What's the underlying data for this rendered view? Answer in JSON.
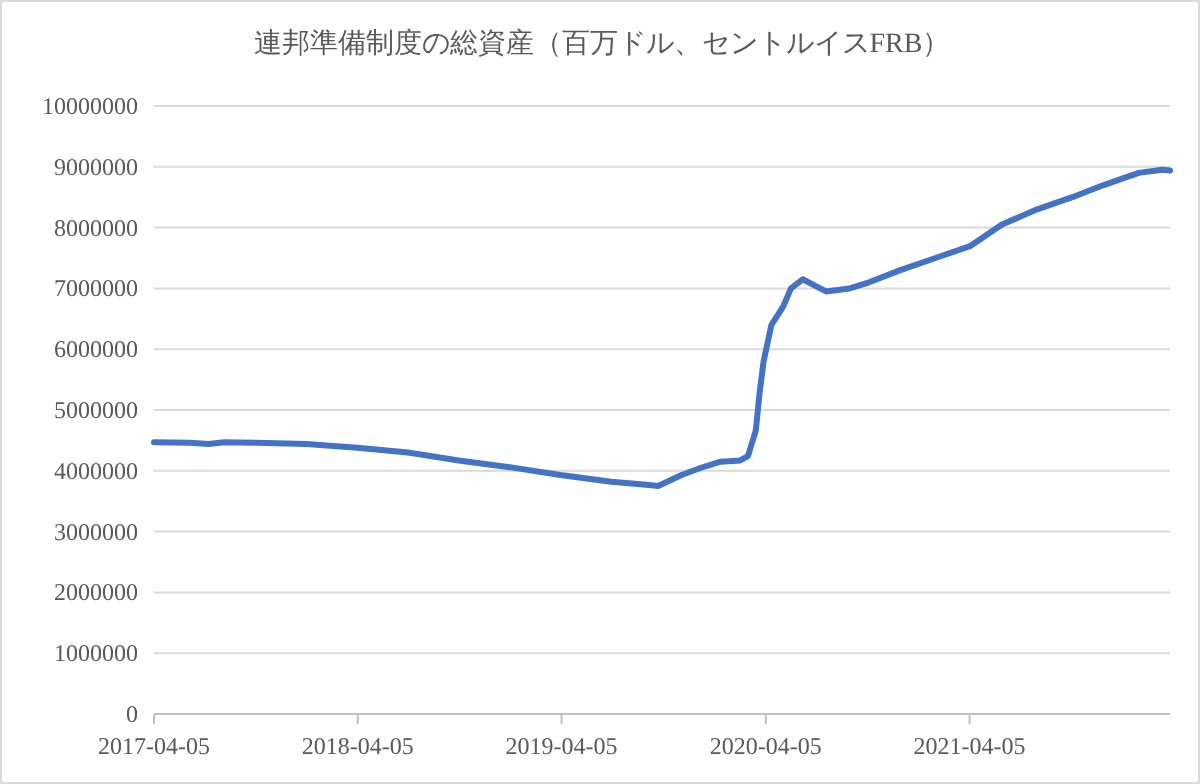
{
  "chart_data": {
    "type": "line",
    "title": "連邦準備制度の総資産（百万ドル、セントルイスFRB）",
    "x": [
      "2017-04-05",
      "2017-06-07",
      "2017-07-12",
      "2017-08-09",
      "2017-10-04",
      "2018-01-03",
      "2018-04-04",
      "2018-07-04",
      "2018-10-03",
      "2019-01-02",
      "2019-04-03",
      "2019-07-03",
      "2019-09-04",
      "2019-09-25",
      "2019-11-06",
      "2019-12-11",
      "2020-01-15",
      "2020-02-19",
      "2020-03-04",
      "2020-03-18",
      "2020-03-25",
      "2020-04-01",
      "2020-04-15",
      "2020-05-06",
      "2020-05-20",
      "2020-06-10",
      "2020-07-01",
      "2020-07-22",
      "2020-09-02",
      "2020-10-07",
      "2020-12-02",
      "2021-02-03",
      "2021-04-07",
      "2021-06-02",
      "2021-08-04",
      "2021-10-06",
      "2021-12-01",
      "2022-02-02",
      "2022-03-16",
      "2022-03-30"
    ],
    "series": [
      {
        "color": "#4472c4",
        "values": [
          4470000,
          4460000,
          4440000,
          4470000,
          4460000,
          4440000,
          4380000,
          4300000,
          4170000,
          4060000,
          3930000,
          3820000,
          3770000,
          3750000,
          3930000,
          4050000,
          4150000,
          4170000,
          4240000,
          4660000,
          5300000,
          5800000,
          6400000,
          6700000,
          7000000,
          7150000,
          7050000,
          6950000,
          7000000,
          7100000,
          7300000,
          7500000,
          7700000,
          8050000,
          8300000,
          8500000,
          8700000,
          8900000,
          8950000,
          8940000
        ]
      }
    ],
    "xlim": [
      "2017-04-05",
      "2022-03-30"
    ],
    "xticks": [
      "2017-04-05",
      "2018-04-05",
      "2019-04-05",
      "2020-04-05",
      "2021-04-05"
    ],
    "ylim": [
      0,
      10000000
    ],
    "yticks": [
      0,
      1000000,
      2000000,
      3000000,
      4000000,
      5000000,
      6000000,
      7000000,
      8000000,
      9000000,
      10000000
    ],
    "grid": "y",
    "marker": "none",
    "line_style": "solid"
  }
}
